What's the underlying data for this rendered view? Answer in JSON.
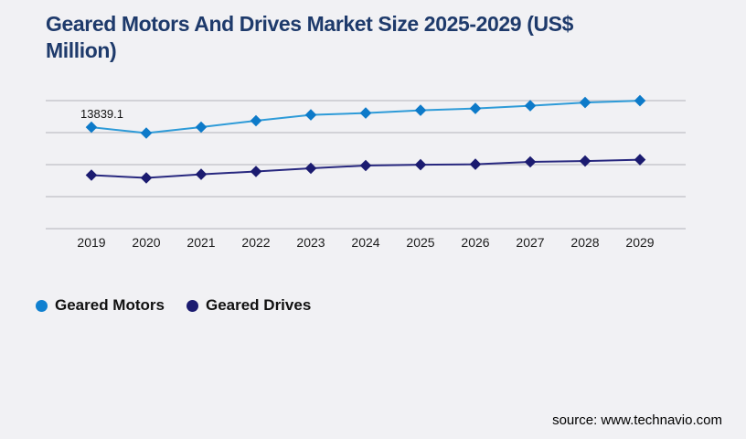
{
  "page": {
    "background_color": "#f1f1f4"
  },
  "header": {
    "title": "Geared Motors And Drives Market Size 2025-2029 (US$ Million)",
    "title_color": "#1e3a6b"
  },
  "chart_data": {
    "type": "line",
    "title": "Geared Motors And Drives Market Size 2025-2029 (US$ Million)",
    "categories": [
      "2019",
      "2020",
      "2021",
      "2022",
      "2023",
      "2024",
      "2025",
      "2026",
      "2027",
      "2028",
      "2029"
    ],
    "series": [
      {
        "name": "Geared Motors",
        "line_color": "#2e9bd8",
        "marker_color": "#0d7ac9",
        "marker": "diamond",
        "values": [
          13839.1,
          13470,
          13840,
          14240,
          14610,
          14725,
          14895,
          15010,
          15180,
          15380,
          15495
        ]
      },
      {
        "name": "Geared Drives",
        "line_color": "#28287f",
        "marker_color": "#1b1b70",
        "marker": "diamond",
        "values": [
          10840,
          10670,
          10895,
          11070,
          11270,
          11440,
          11495,
          11525,
          11670,
          11725,
          11810
        ]
      }
    ],
    "data_labels": [
      {
        "series": "Geared Motors",
        "category": "2019",
        "text": "13839.1"
      }
    ],
    "xlabel": "",
    "ylabel": "",
    "ylim": [
      7500,
      15500
    ],
    "y_gridlines": [
      15500,
      13500,
      11500,
      9500,
      7500
    ],
    "y_axis_labels_visible": false,
    "grid": "horizontal-only",
    "grid_color": "#c7c7cd",
    "tick_label_color": "#1c1c1c",
    "data_label_color": "#141414",
    "legend_position": "bottom-left"
  },
  "legend": {
    "items": [
      {
        "label": "Geared Motors",
        "color": "#1080d0"
      },
      {
        "label": "Geared Drives",
        "color": "#1b1b70"
      }
    ]
  },
  "footer": {
    "source_label": "source: www.technavio.com"
  }
}
